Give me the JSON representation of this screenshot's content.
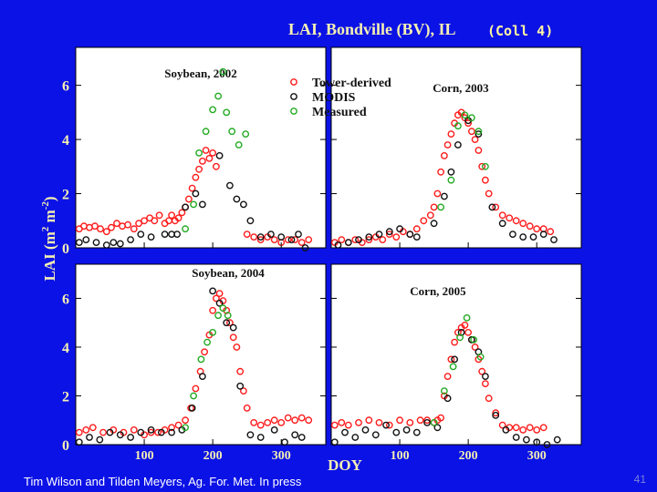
{
  "slide": {
    "title": "LAI, Bondville (BV), IL",
    "collection_tag": "(Coll 4)",
    "citation": "Tim Wilson and Tilden Meyers, Ag. For. Met. In press",
    "slide_number": "41"
  },
  "colors": {
    "background": "#0b12e6",
    "panel": "#ffffff",
    "tower": "#ff1a1a",
    "modis": "#111111",
    "measured": "#22aa22",
    "title_text": "#f4efb3"
  },
  "chart_data": {
    "type": "scatter",
    "title": "LAI, Bondville (BV), IL",
    "xlabel": "DOY",
    "ylabel": "LAI (m2 m-2)",
    "ylabel_parts": [
      "LAI (m",
      "2",
      " m",
      "-2",
      ")"
    ],
    "xlim": [
      0,
      365
    ],
    "ylim": [
      0,
      7.4
    ],
    "yticks": [
      0,
      2,
      4,
      6
    ],
    "xticks": [
      100,
      200,
      300
    ],
    "legend": {
      "position": "top-left-center",
      "entries": [
        {
          "name": "Tower-derived",
          "color": "#ff1a1a"
        },
        {
          "name": "MODIS",
          "color": "#111111"
        },
        {
          "name": "Measured",
          "color": "#22aa22"
        }
      ]
    },
    "panels": [
      {
        "label": "Soybean, 2002",
        "row": "top",
        "col": "left",
        "series": [
          {
            "name": "Tower-derived",
            "x": [
              5,
              12,
              20,
              28,
              36,
              45,
              52,
              60,
              68,
              76,
              85,
              92,
              100,
              108,
              115,
              122,
              130,
              136,
              140,
              145,
              150,
              155,
              160,
              165,
              170,
              175,
              180,
              185,
              190,
              195,
              200,
              205,
              250,
              260,
              270,
              280,
              290,
              300,
              310,
              320,
              330,
              340
            ],
            "y": [
              0.7,
              0.8,
              0.75,
              0.8,
              0.7,
              0.6,
              0.75,
              0.9,
              0.8,
              0.85,
              0.7,
              0.9,
              1.0,
              1.1,
              1.0,
              1.2,
              0.9,
              1.0,
              1.2,
              1.0,
              1.1,
              1.3,
              1.5,
              1.8,
              2.2,
              2.6,
              2.9,
              3.2,
              3.6,
              3.3,
              3.5,
              3.0,
              0.5,
              0.4,
              0.3,
              0.4,
              0.3,
              0.2,
              0.3,
              0.3,
              0.2,
              0.3
            ]
          },
          {
            "name": "MODIS",
            "x": [
              5,
              15,
              30,
              45,
              55,
              65,
              80,
              95,
              110,
              130,
              140,
              148,
              160,
              175,
              185,
              210,
              225,
              235,
              245,
              255,
              270,
              285,
              300,
              315,
              325,
              335
            ],
            "y": [
              0.2,
              0.3,
              0.2,
              0.1,
              0.2,
              0.15,
              0.3,
              0.5,
              0.4,
              0.5,
              0.5,
              0.5,
              1.5,
              2.0,
              1.6,
              3.4,
              2.3,
              1.8,
              1.6,
              1.0,
              0.4,
              0.5,
              0.4,
              0.3,
              0.5,
              0.0
            ]
          },
          {
            "name": "Measured",
            "x": [
              160,
              172,
              180,
              190,
              200,
              208,
              215,
              220,
              228,
              238,
              248
            ],
            "y": [
              0.7,
              1.6,
              3.5,
              4.3,
              5.1,
              5.6,
              6.5,
              5.0,
              4.3,
              3.8,
              4.2
            ]
          }
        ]
      },
      {
        "label": "Corn, 2003",
        "row": "top",
        "col": "right",
        "series": [
          {
            "name": "Tower-derived",
            "x": [
              5,
              15,
              25,
              35,
              45,
              55,
              65,
              75,
              85,
              95,
              105,
              115,
              125,
              135,
              145,
              150,
              155,
              160,
              165,
              170,
              175,
              180,
              185,
              190,
              195,
              200,
              205,
              210,
              215,
              220,
              225,
              230,
              240,
              250,
              260,
              270,
              280,
              290,
              300,
              310,
              320
            ],
            "y": [
              0.2,
              0.3,
              0.2,
              0.3,
              0.2,
              0.3,
              0.4,
              0.3,
              0.5,
              0.4,
              0.6,
              0.5,
              0.7,
              1.0,
              1.2,
              1.5,
              2.0,
              2.8,
              3.4,
              3.8,
              4.2,
              4.6,
              4.9,
              5.0,
              4.8,
              4.6,
              4.3,
              4.0,
              3.6,
              3.0,
              2.5,
              2.0,
              1.5,
              1.2,
              1.1,
              1.0,
              0.9,
              0.8,
              0.7,
              0.7,
              0.6
            ]
          },
          {
            "name": "MODIS",
            "x": [
              10,
              25,
              40,
              55,
              70,
              85,
              100,
              115,
              125,
              150,
              165,
              175,
              185,
              200,
              215,
              235,
              250,
              265,
              280,
              295,
              310,
              325
            ],
            "y": [
              0.1,
              0.2,
              0.3,
              0.4,
              0.5,
              0.6,
              0.7,
              0.5,
              0.4,
              0.9,
              1.9,
              2.8,
              3.8,
              4.7,
              4.2,
              1.5,
              0.9,
              0.5,
              0.4,
              0.4,
              0.5,
              0.3
            ]
          },
          {
            "name": "Measured",
            "x": [
              160,
              175,
              185,
              195,
              205,
              215,
              225
            ],
            "y": [
              1.5,
              2.5,
              4.5,
              4.9,
              4.8,
              4.3,
              3.0
            ]
          }
        ]
      },
      {
        "label": "Soybean, 2004",
        "row": "bottom",
        "col": "left",
        "series": [
          {
            "name": "Tower-derived",
            "x": [
              5,
              15,
              25,
              40,
              55,
              70,
              85,
              100,
              110,
              120,
              130,
              140,
              150,
              160,
              168,
              175,
              182,
              188,
              195,
              200,
              205,
              210,
              215,
              220,
              225,
              230,
              235,
              240,
              245,
              250,
              260,
              270,
              280,
              290,
              300,
              310,
              320,
              330,
              340
            ],
            "y": [
              0.5,
              0.6,
              0.7,
              0.5,
              0.6,
              0.5,
              0.6,
              0.4,
              0.5,
              0.5,
              0.6,
              0.7,
              0.8,
              1.0,
              1.5,
              2.3,
              3.0,
              3.8,
              4.5,
              5.5,
              6.0,
              6.2,
              5.9,
              5.5,
              5.0,
              4.4,
              4.0,
              3.0,
              2.2,
              1.5,
              0.9,
              0.8,
              0.9,
              1.0,
              0.9,
              1.1,
              1.0,
              1.1,
              1.0
            ]
          },
          {
            "name": "MODIS",
            "x": [
              5,
              20,
              35,
              50,
              65,
              80,
              95,
              110,
              125,
              140,
              155,
              170,
              185,
              200,
              210,
              220,
              230,
              240,
              255,
              270,
              290,
              305,
              320,
              330
            ],
            "y": [
              0.1,
              0.3,
              0.2,
              0.5,
              0.4,
              0.3,
              0.5,
              0.6,
              0.5,
              0.5,
              0.6,
              1.5,
              2.8,
              6.3,
              5.8,
              5.0,
              4.8,
              2.4,
              0.4,
              0.3,
              0.6,
              0.1,
              0.4,
              0.3
            ]
          },
          {
            "name": "Measured",
            "x": [
              160,
              172,
              183,
              192,
              200,
              208,
              215,
              222
            ],
            "y": [
              0.7,
              2.0,
              3.5,
              4.2,
              4.6,
              5.3,
              5.6,
              5.3
            ]
          }
        ]
      },
      {
        "label": "Corn, 2005",
        "row": "bottom",
        "col": "right",
        "series": [
          {
            "name": "Tower-derived",
            "x": [
              5,
              15,
              25,
              40,
              55,
              70,
              85,
              100,
              115,
              130,
              140,
              150,
              155,
              160,
              165,
              170,
              175,
              180,
              185,
              190,
              195,
              200,
              205,
              210,
              215,
              220,
              225,
              230,
              240,
              250,
              260,
              270,
              280,
              290,
              300,
              310
            ],
            "y": [
              0.8,
              0.9,
              0.8,
              0.9,
              1.0,
              0.9,
              0.8,
              1.0,
              0.9,
              1.0,
              1.0,
              0.9,
              1.0,
              1.1,
              2.0,
              2.8,
              3.5,
              4.2,
              4.6,
              4.8,
              4.9,
              4.6,
              4.3,
              4.0,
              3.5,
              3.0,
              2.5,
              1.9,
              1.3,
              0.8,
              0.7,
              0.7,
              0.6,
              0.7,
              0.6,
              0.7
            ]
          },
          {
            "name": "MODIS",
            "x": [
              5,
              20,
              35,
              50,
              65,
              80,
              95,
              110,
              125,
              140,
              155,
              170,
              180,
              190,
              205,
              215,
              225,
              240,
              255,
              270,
              285,
              300,
              315,
              330
            ],
            "y": [
              0.1,
              0.5,
              0.3,
              0.6,
              0.4,
              0.8,
              0.5,
              0.6,
              0.5,
              0.9,
              0.7,
              1.9,
              3.5,
              4.6,
              4.3,
              3.8,
              2.8,
              1.2,
              0.6,
              0.3,
              0.2,
              0.1,
              0.0,
              0.2
            ]
          },
          {
            "name": "Measured",
            "x": [
              150,
              165,
              178,
              188,
              198,
              208,
              218
            ],
            "y": [
              0.9,
              2.2,
              3.2,
              4.4,
              5.2,
              4.3,
              3.6
            ]
          }
        ]
      }
    ]
  }
}
